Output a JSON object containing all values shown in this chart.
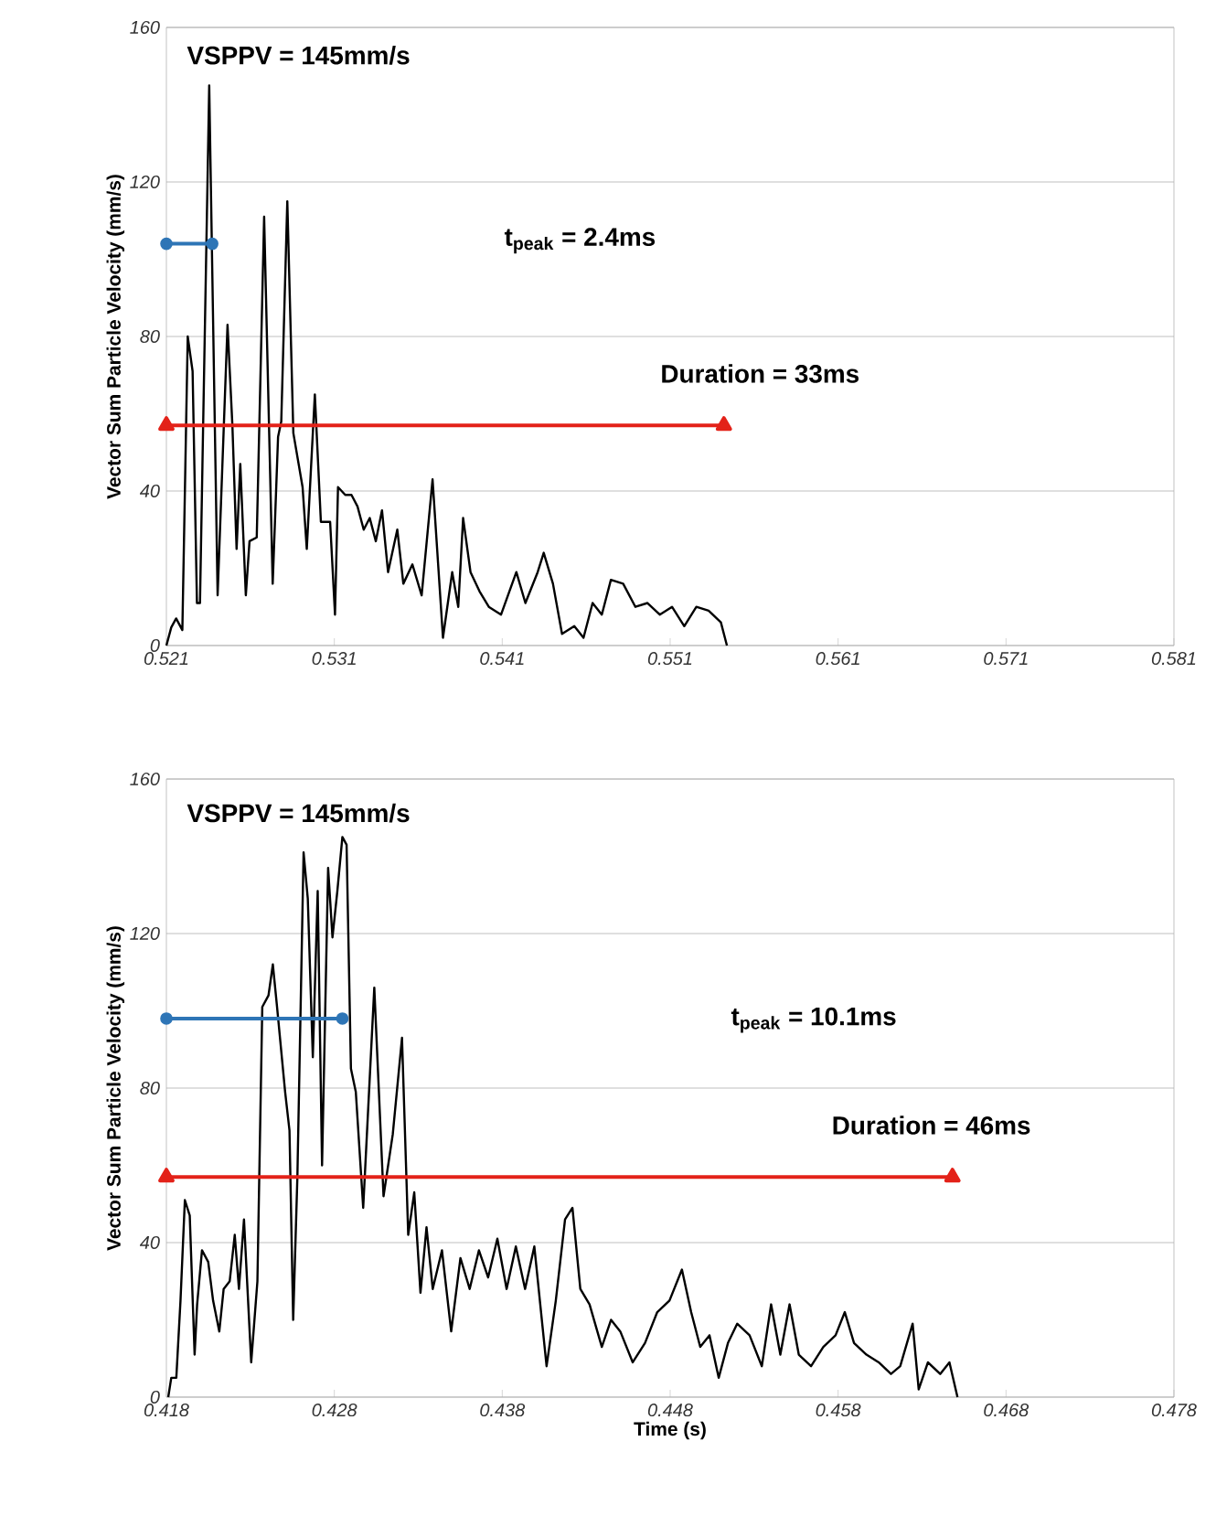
{
  "chart_data": [
    {
      "type": "line",
      "ylabel": "Vector Sum Particle Velocity (mm/s)",
      "xlim": [
        0.521,
        0.581
      ],
      "xticks": [
        0.521,
        0.531,
        0.541,
        0.551,
        0.561,
        0.571,
        0.581
      ],
      "ylim": [
        0,
        160
      ],
      "yticks": [
        0,
        40,
        80,
        120,
        160
      ],
      "grid": "y",
      "annotations": [
        "VSPPV = 145mm/s",
        "t$_{peak}$ = 2.4ms",
        "Duration = 33ms"
      ],
      "series": [
        {
          "color": "#000000",
          "x": [
            0.521,
            0.52129,
            0.52158,
            0.52195,
            0.52227,
            0.52256,
            0.52282,
            0.523,
            0.52355,
            0.52405,
            0.52464,
            0.52493,
            0.52518,
            0.5254,
            0.52573,
            0.52595,
            0.52638,
            0.52682,
            0.52733,
            0.52765,
            0.52784,
            0.5282,
            0.52856,
            0.52911,
            0.52936,
            0.52984,
            0.5302,
            0.53075,
            0.53104,
            0.53122,
            0.53165,
            0.53202,
            0.53238,
            0.53275,
            0.53311,
            0.53347,
            0.53384,
            0.5342,
            0.53475,
            0.53511,
            0.53565,
            0.5362,
            0.53685,
            0.53747,
            0.53802,
            0.53838,
            0.53867,
            0.53911,
            0.53965,
            0.5402,
            0.54093,
            0.54184,
            0.54238,
            0.54311,
            0.54347,
            0.54402,
            0.54456,
            0.54529,
            0.54584,
            0.54638,
            0.54693,
            0.54747,
            0.5482,
            0.54893,
            0.54965,
            0.55038,
            0.55111,
            0.55184,
            0.55256,
            0.55329,
            0.55402,
            0.55438
          ],
          "values": [
            0,
            4.7,
            7,
            4,
            80,
            71,
            11,
            11,
            145,
            13,
            83,
            57,
            25,
            47,
            13,
            27,
            28,
            111,
            16,
            54,
            58,
            115,
            55,
            41,
            25,
            65,
            32,
            32,
            8,
            41,
            39,
            39,
            36,
            30,
            33,
            27,
            35,
            19,
            30,
            16,
            21,
            13,
            43,
            2,
            19,
            10,
            33,
            19,
            14,
            10,
            8,
            19,
            11,
            19,
            24,
            16,
            3,
            5,
            2,
            11,
            8,
            17,
            16,
            10,
            11,
            8,
            10,
            5,
            10,
            9,
            6,
            0
          ]
        },
        {
          "color": "#2e75b6",
          "marker": "circle",
          "x": [
            0.521,
            0.52373
          ],
          "values": [
            104,
            104
          ]
        },
        {
          "color": "#e32219",
          "marker": "triangle",
          "x": [
            0.521,
            0.5542
          ],
          "values": [
            57,
            57
          ]
        }
      ]
    },
    {
      "type": "line",
      "ylabel": "Vector Sum Particle Velocity (mm/s)",
      "xlabel": "Time (s)",
      "xlim": [
        0.418,
        0.478
      ],
      "xticks": [
        0.418,
        0.428,
        0.438,
        0.448,
        0.458,
        0.468,
        0.478
      ],
      "ylim": [
        0,
        160
      ],
      "yticks": [
        0,
        40,
        80,
        120,
        160
      ],
      "grid": "y",
      "annotations": [
        "VSPPV = 145mm/s",
        "t$_{peak}$ = 10.1ms",
        "Duration = 46ms"
      ],
      "series": [
        {
          "color": "#000000",
          "x": [
            0.41811,
            0.41829,
            0.41859,
            0.41884,
            0.4191,
            0.41939,
            0.41968,
            0.41983,
            0.42012,
            0.42049,
            0.42078,
            0.42115,
            0.42141,
            0.42177,
            0.42207,
            0.42232,
            0.42262,
            0.42305,
            0.42342,
            0.42371,
            0.42408,
            0.42434,
            0.42459,
            0.42507,
            0.42533,
            0.42555,
            0.4258,
            0.42617,
            0.42642,
            0.42672,
            0.42701,
            0.42727,
            0.42763,
            0.42789,
            0.42818,
            0.42848,
            0.42873,
            0.42899,
            0.42928,
            0.42972,
            0.43038,
            0.43093,
            0.43148,
            0.43203,
            0.4324,
            0.43276,
            0.43313,
            0.43349,
            0.43386,
            0.43441,
            0.43496,
            0.43551,
            0.43606,
            0.43661,
            0.43716,
            0.43771,
            0.43826,
            0.43881,
            0.43936,
            0.43991,
            0.44064,
            0.44119,
            0.44174,
            0.44218,
            0.44265,
            0.4432,
            0.44393,
            0.44448,
            0.44503,
            0.44577,
            0.4465,
            0.44723,
            0.44796,
            0.4487,
            0.44925,
            0.44979,
            0.45034,
            0.45089,
            0.45144,
            0.45199,
            0.45273,
            0.45346,
            0.45401,
            0.45456,
            0.45511,
            0.45566,
            0.45639,
            0.45712,
            0.45785,
            0.4584,
            0.45895,
            0.45969,
            0.46042,
            0.46115,
            0.4617,
            0.46244,
            0.4628,
            0.46335,
            0.46408,
            0.46463,
            0.46511
          ],
          "values": [
            0,
            5,
            5,
            25,
            51,
            47,
            11,
            24,
            38,
            35,
            25,
            17,
            28,
            30,
            42,
            28,
            46,
            9,
            30,
            101,
            104,
            112,
            101,
            79,
            69,
            20,
            57,
            141,
            129,
            88,
            131,
            60,
            137,
            119,
            131,
            145,
            143,
            85,
            79,
            49,
            106,
            52,
            68,
            93,
            42,
            53,
            27,
            44,
            28,
            38,
            17,
            36,
            28,
            38,
            31,
            41,
            28,
            39,
            28,
            39,
            8,
            25,
            46,
            49,
            28,
            24,
            13,
            20,
            17,
            9,
            14,
            22,
            25,
            33,
            22,
            13,
            16,
            5,
            14,
            19,
            16,
            8,
            24,
            11,
            24,
            11,
            8,
            13,
            16,
            22,
            14,
            11,
            9,
            6,
            8,
            19,
            2,
            9,
            6,
            9,
            0
          ]
        },
        {
          "color": "#2e75b6",
          "marker": "circle",
          "x": [
            0.418,
            0.42848
          ],
          "values": [
            98,
            98
          ]
        },
        {
          "color": "#e32219",
          "marker": "triangle",
          "x": [
            0.418,
            0.46481
          ],
          "values": [
            57,
            57
          ]
        }
      ]
    }
  ]
}
